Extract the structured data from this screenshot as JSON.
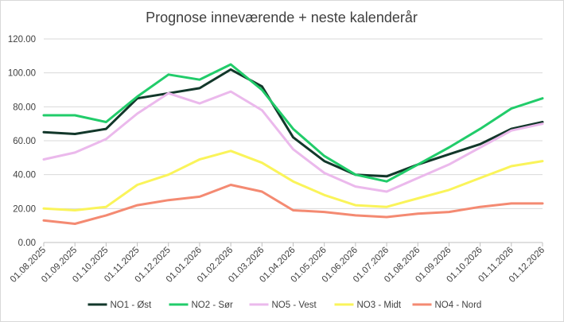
{
  "chart_data": {
    "type": "line",
    "title": "Prognose inneværende + neste kalenderår",
    "xlabel": "",
    "ylabel": "",
    "ylim": [
      0,
      120
    ],
    "yticks": [
      "0.00",
      "20.00",
      "40.00",
      "60.00",
      "80.00",
      "100.00",
      "120.00"
    ],
    "grid": true,
    "legend_position": "bottom",
    "categories": [
      "01.08.2025",
      "01.09.2025",
      "01.10.2025",
      "01.11.2025",
      "01.12.2025",
      "01.01.2026",
      "01.02.2026",
      "01.03.2026",
      "01.04.2026",
      "01.05.2026",
      "01.06.2026",
      "01.07.2026",
      "01.08.2026",
      "01.09.2026",
      "01.10.2026",
      "01.11.2026",
      "01.12.2026"
    ],
    "series": [
      {
        "name": "NO1 - Øst",
        "color": "#12372a",
        "values": [
          65,
          64,
          67,
          85,
          88,
          91,
          102,
          92,
          62,
          48,
          40,
          39,
          46,
          52,
          58,
          67,
          71
        ]
      },
      {
        "name": "NO2 - Sør",
        "color": "#21cc6a",
        "values": [
          75,
          75,
          71,
          86,
          99,
          96,
          105,
          90,
          67,
          51,
          40,
          36,
          46,
          56,
          67,
          79,
          85
        ]
      },
      {
        "name": "NO5 - Vest",
        "color": "#ebb9ec",
        "values": [
          49,
          53,
          61,
          76,
          88,
          82,
          89,
          78,
          55,
          41,
          33,
          30,
          38,
          46,
          56,
          66,
          70
        ]
      },
      {
        "name": "NO3 - Midt",
        "color": "#faf45a",
        "values": [
          20,
          19,
          21,
          34,
          40,
          49,
          54,
          47,
          36,
          28,
          22,
          21,
          26,
          31,
          38,
          45,
          48
        ]
      },
      {
        "name": "NO4 - Nord",
        "color": "#f48a72",
        "values": [
          13,
          11,
          16,
          22,
          25,
          27,
          34,
          30,
          19,
          18,
          16,
          15,
          17,
          18,
          21,
          23,
          23
        ]
      }
    ]
  }
}
